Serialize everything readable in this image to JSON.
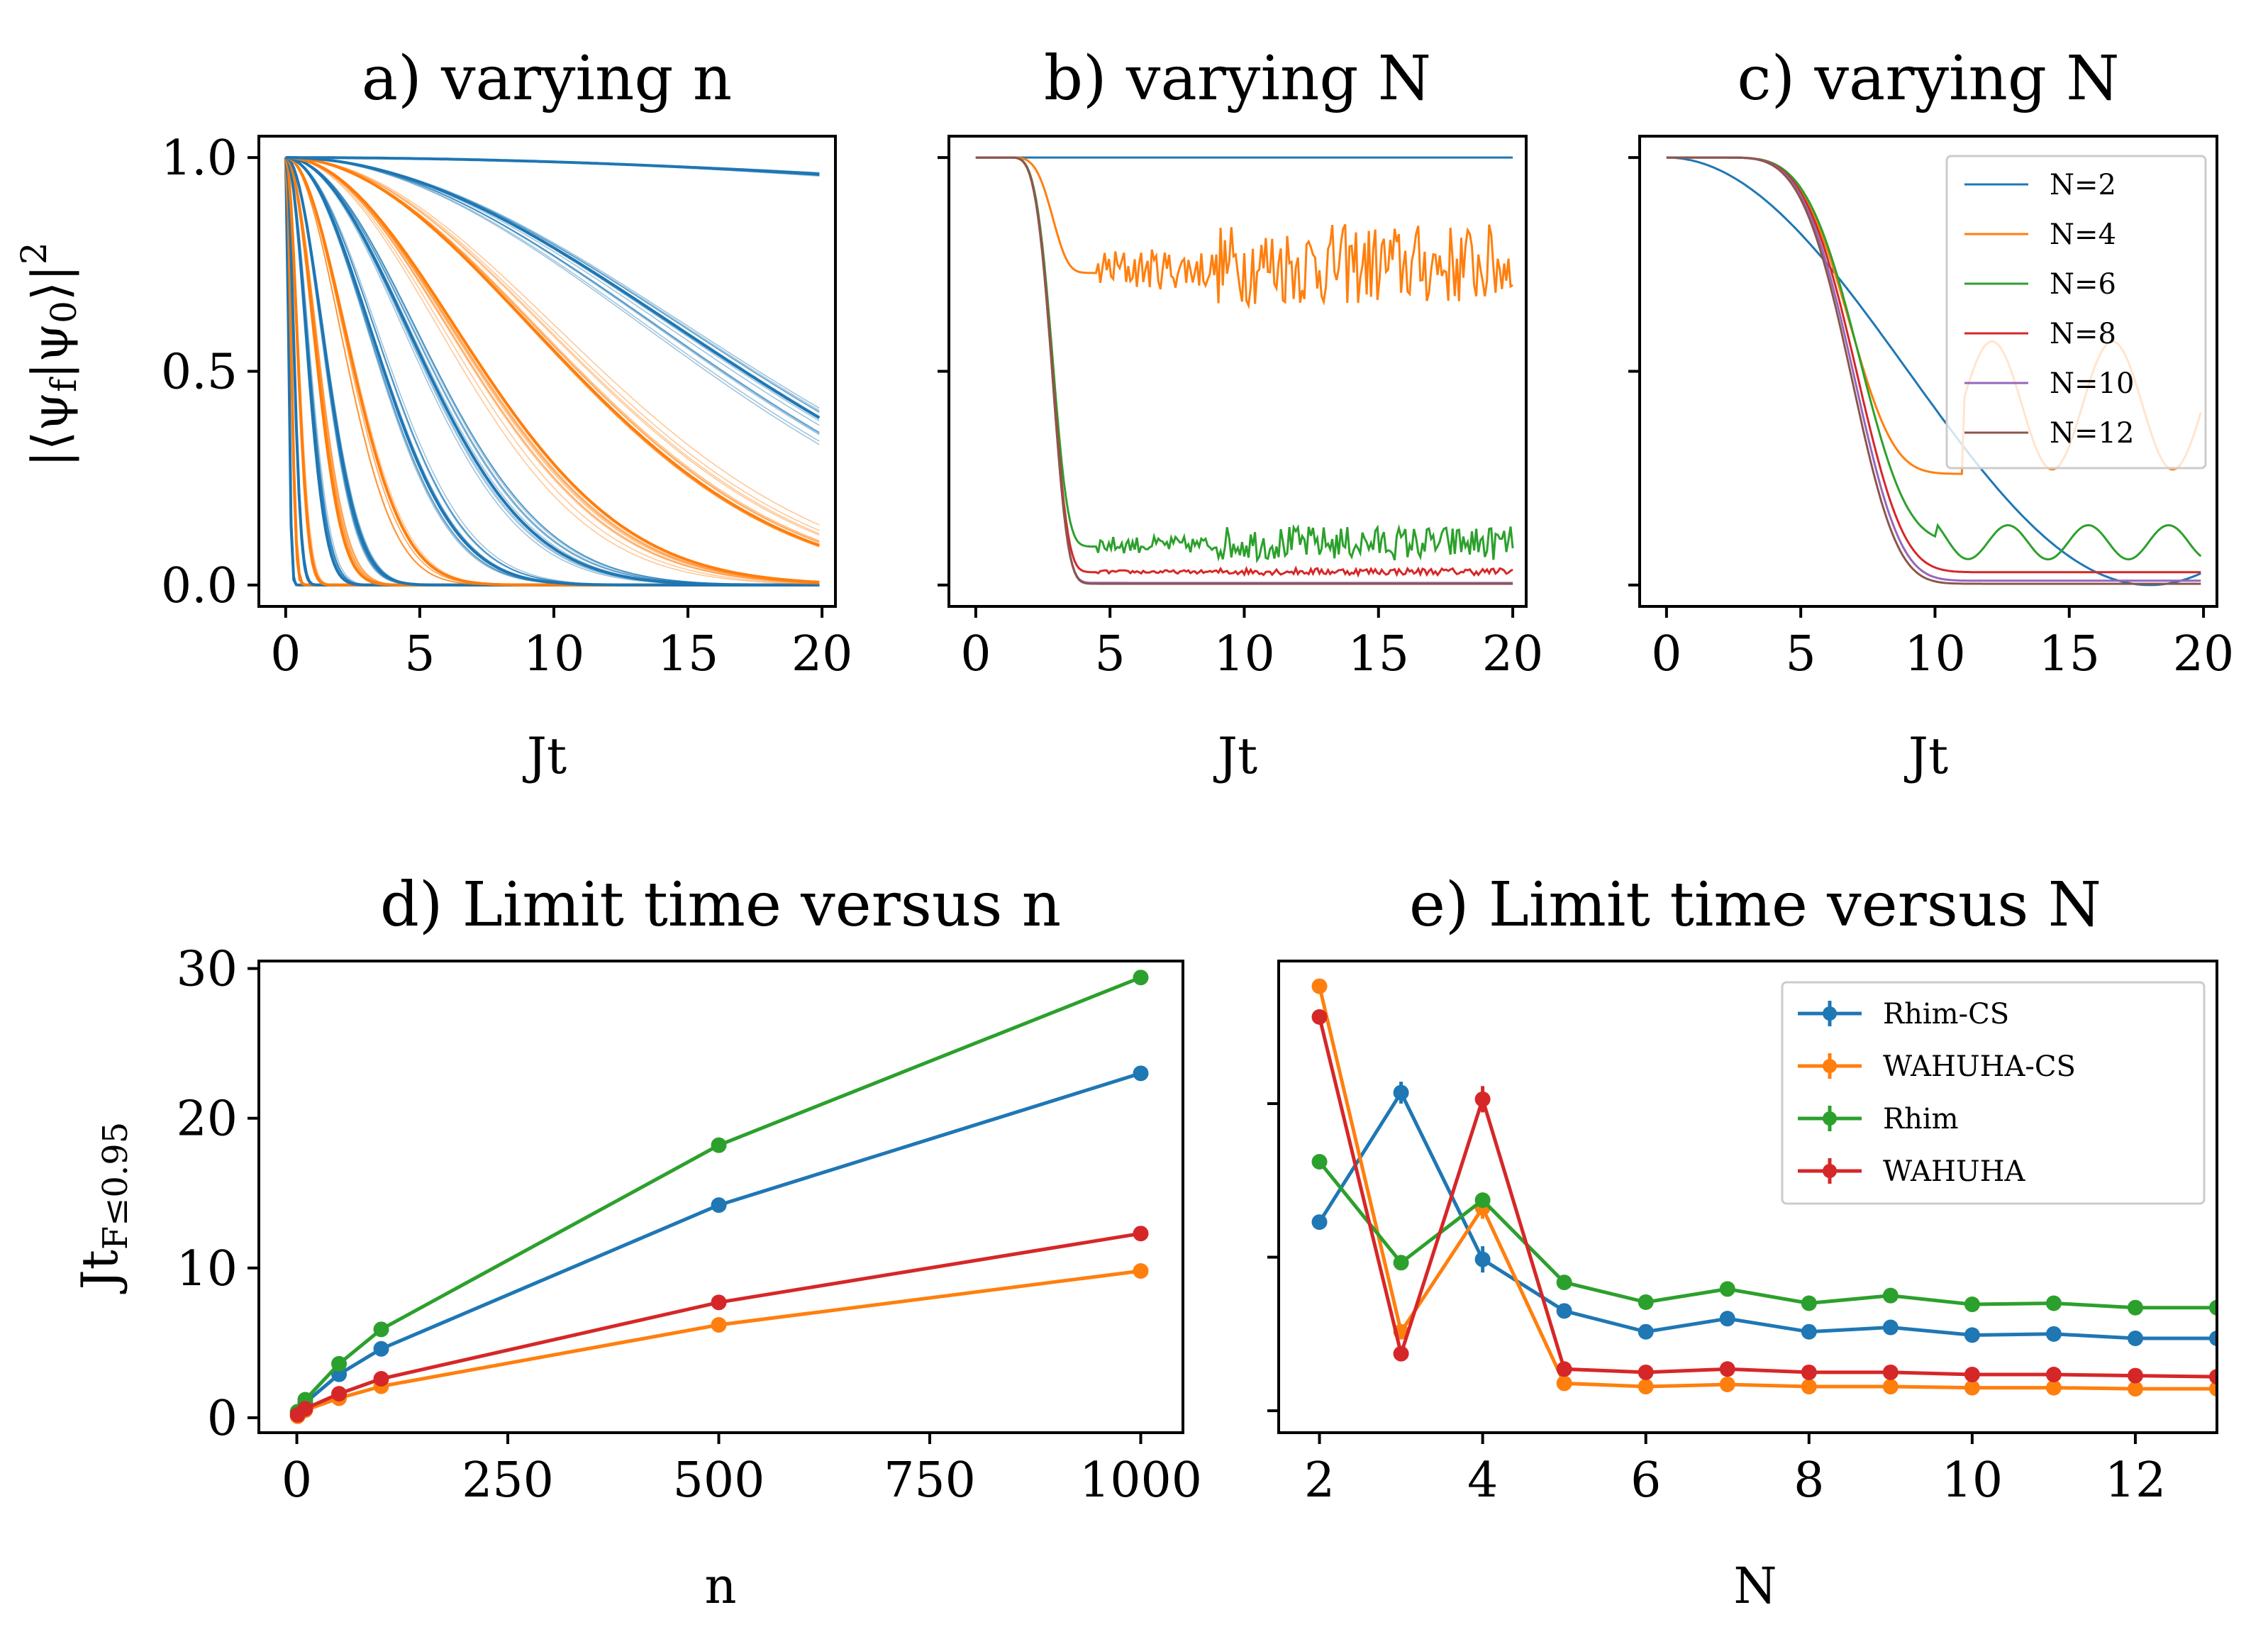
{
  "colors": {
    "C0": "#1f77b4",
    "C1": "#ff7f0e",
    "C2": "#2ca02c",
    "C3": "#d62728",
    "C4": "#9467bd",
    "C5": "#8c564b"
  },
  "chart_data": [
    {
      "id": "a",
      "type": "line",
      "title": "a) varying n",
      "xlabel": "Jt",
      "ylabel": "|⟨ψf|ψ0⟩|²",
      "xlim": [
        -1,
        20.5
      ],
      "ylim": [
        -0.05,
        1.05
      ],
      "xticks": [
        0,
        5,
        10,
        15,
        20
      ],
      "yticks": [
        0.0,
        0.5,
        1.0
      ],
      "ytick_labels": [
        "0.0",
        "0.5",
        "1.0"
      ],
      "description_series": "Gaussian-like decay curves, alternating colors, one bundle per n",
      "series": [
        {
          "color": "C0",
          "t0": 0.0,
          "tau": 0.15
        },
        {
          "color": "C1",
          "t0": 0.0,
          "tau": 0.25
        },
        {
          "color": "C0",
          "t0": 0.1,
          "tau": 0.4
        },
        {
          "color": "C1",
          "t0": 0.2,
          "tau": 0.6
        },
        {
          "color": "C0",
          "t0": 0.3,
          "tau": 1.1
        },
        {
          "color": "C1",
          "t0": 0.4,
          "tau": 1.5
        },
        {
          "color": "C0",
          "t0": 0.5,
          "tau": 1.9
        },
        {
          "color": "C1",
          "t0": 0.8,
          "tau": 3.0
        },
        {
          "color": "C0",
          "t0": 1.2,
          "tau": 4.5
        },
        {
          "color": "C0",
          "t0": 2.0,
          "tau": 6.5
        },
        {
          "color": "C1",
          "t0": 3.0,
          "tau": 8.5
        },
        {
          "color": "C1",
          "t0": 4.0,
          "tau": 13.5
        },
        {
          "color": "C0",
          "t0": 5.0,
          "tau": 20.0
        },
        {
          "color": "C0",
          "t0": 6.0,
          "tau": 100.0
        }
      ]
    },
    {
      "id": "b",
      "type": "line",
      "title": "b) varying N",
      "xlabel": "Jt",
      "xlim": [
        -1,
        20.5
      ],
      "ylim": [
        -0.05,
        1.05
      ],
      "xticks": [
        0,
        5,
        10,
        15,
        20
      ],
      "series": [
        {
          "name": "N=2",
          "color": "C0",
          "plateau": 1.0,
          "t0": 0,
          "tau": 1000,
          "noise": 0.0
        },
        {
          "name": "N=4",
          "color": "C1",
          "plateau": 0.73,
          "t0": 2.3,
          "tau": 1.2,
          "noise": 0.12
        },
        {
          "name": "N=6",
          "color": "C2",
          "plateau": 0.09,
          "t0": 2.3,
          "tau": 1.2,
          "noise": 0.05
        },
        {
          "name": "N=8",
          "color": "C3",
          "plateau": 0.03,
          "t0": 2.3,
          "tau": 1.2,
          "noise": 0.01
        },
        {
          "name": "N=10",
          "color": "C4",
          "plateau": 0.005,
          "t0": 2.3,
          "tau": 1.2,
          "noise": 0.0
        },
        {
          "name": "N=12",
          "color": "C5",
          "plateau": 0.003,
          "t0": 2.3,
          "tau": 1.2,
          "noise": 0.0
        }
      ]
    },
    {
      "id": "c",
      "type": "line",
      "title": "c) varying N",
      "xlabel": "Jt",
      "xlim": [
        -1,
        20.5
      ],
      "ylim": [
        -0.05,
        1.05
      ],
      "xticks": [
        0,
        5,
        10,
        15,
        20
      ],
      "legend": "top-right",
      "series": [
        {
          "name": "N=2",
          "color": "C0"
        },
        {
          "name": "N=4",
          "color": "C1"
        },
        {
          "name": "N=6",
          "color": "C2"
        },
        {
          "name": "N=8",
          "color": "C3"
        },
        {
          "name": "N=10",
          "color": "C4"
        },
        {
          "name": "N=12",
          "color": "C5"
        }
      ]
    },
    {
      "id": "d",
      "type": "line",
      "title": "d) Limit time versus n",
      "xlabel": "n",
      "ylabel": "Jt_{F≤0.95}",
      "xlim": [
        -45,
        1050
      ],
      "ylim": [
        -1,
        30.5
      ],
      "xticks": [
        0,
        250,
        500,
        750,
        1000
      ],
      "yticks": [
        0,
        10,
        20,
        30
      ],
      "x": [
        1,
        10,
        50,
        100,
        500,
        1000
      ],
      "series": [
        {
          "name": "Rhim-CS",
          "color": "C0",
          "values": [
            0.3,
            1.0,
            2.9,
            4.6,
            14.2,
            23.0
          ]
        },
        {
          "name": "WAHUHA-CS",
          "color": "C1",
          "values": [
            0.1,
            0.5,
            1.3,
            2.1,
            6.2,
            9.8
          ]
        },
        {
          "name": "Rhim",
          "color": "C2",
          "values": [
            0.4,
            1.2,
            3.6,
            5.9,
            18.2,
            29.4
          ]
        },
        {
          "name": "WAHUHA",
          "color": "C3",
          "values": [
            0.2,
            0.6,
            1.6,
            2.6,
            7.7,
            12.3
          ]
        }
      ]
    },
    {
      "id": "e",
      "type": "line",
      "title": "e) Limit time versus N",
      "xlabel": "N",
      "xlim": [
        1.5,
        13
      ],
      "ylim": [
        0.0,
        4.3
      ],
      "xticks": [
        2,
        4,
        6,
        8,
        10,
        12
      ],
      "legend": "top-right",
      "x": [
        2,
        3,
        4,
        5,
        6,
        7,
        8,
        9,
        10,
        11,
        12,
        13
      ],
      "series": [
        {
          "name": "Rhim-CS",
          "color": "C0",
          "values": [
            1.92,
            3.1,
            1.58,
            1.11,
            0.92,
            1.04,
            0.92,
            0.96,
            0.89,
            0.9,
            0.86,
            0.86
          ],
          "err": [
            0,
            0.1,
            0.12,
            0,
            0,
            0,
            0,
            0,
            0,
            0,
            0,
            0
          ]
        },
        {
          "name": "WAHUHA-CS",
          "color": "C1",
          "values": [
            4.07,
            0.92,
            2.05,
            0.45,
            0.42,
            0.44,
            0.42,
            0.42,
            0.41,
            0.41,
            0.4,
            0.4
          ],
          "err": [
            0,
            0.05,
            0.1,
            0,
            0,
            0,
            0,
            0,
            0,
            0,
            0,
            0
          ]
        },
        {
          "name": "Rhim",
          "color": "C2",
          "values": [
            2.47,
            1.55,
            2.12,
            1.37,
            1.19,
            1.31,
            1.18,
            1.25,
            1.17,
            1.18,
            1.14,
            1.14
          ],
          "err": [
            0,
            0.06,
            0.06,
            0,
            0,
            0,
            0,
            0,
            0,
            0,
            0,
            0
          ]
        },
        {
          "name": "WAHUHA",
          "color": "C3",
          "values": [
            3.79,
            0.72,
            3.04,
            0.58,
            0.55,
            0.58,
            0.55,
            0.55,
            0.53,
            0.53,
            0.52,
            0.51
          ],
          "err": [
            0,
            0,
            0.12,
            0,
            0,
            0,
            0,
            0,
            0,
            0,
            0,
            0
          ]
        }
      ]
    }
  ]
}
